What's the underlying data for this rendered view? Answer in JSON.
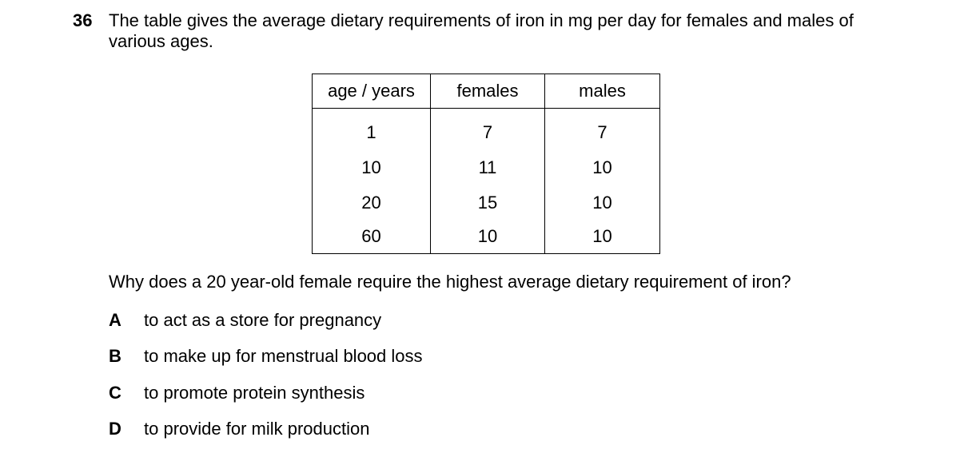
{
  "question": {
    "number": "36",
    "stem": "The table gives the average dietary requirements of iron in mg per day for females and males of various ages.",
    "prompt": "Why does a 20 year-old female require the highest average dietary requirement of iron?"
  },
  "table": {
    "headers": [
      "age / years",
      "females",
      "males"
    ],
    "rows": [
      [
        "1",
        "7",
        "7"
      ],
      [
        "10",
        "11",
        "10"
      ],
      [
        "20",
        "15",
        "10"
      ],
      [
        "60",
        "10",
        "10"
      ]
    ]
  },
  "options": [
    {
      "letter": "A",
      "text": "to act as a store for pregnancy"
    },
    {
      "letter": "B",
      "text": "to make up for menstrual blood loss"
    },
    {
      "letter": "C",
      "text": "to promote protein synthesis"
    },
    {
      "letter": "D",
      "text": "to provide for milk production"
    }
  ]
}
